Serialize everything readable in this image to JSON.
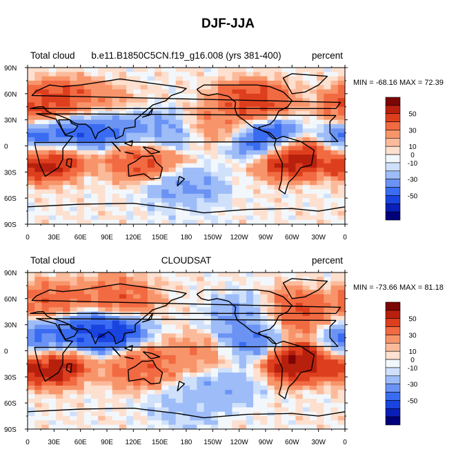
{
  "title": "DJF-JJA",
  "legend_colors": [
    "#00007a",
    "#0a1fb8",
    "#1a44e0",
    "#3a6cf2",
    "#6b93f4",
    "#9dbcf8",
    "#cfe0fb",
    "#f2f7fc",
    "#fde0cf",
    "#fbbb9b",
    "#f8946a",
    "#f26a42",
    "#dd3f1e",
    "#b8200e",
    "#7c0505"
  ],
  "panels": [
    {
      "left_label": "Total cloud",
      "center_label": "b.e11.B1850C5CN.f19_g16.008 (yrs 381-400)",
      "right_label": "percent",
      "min_max": "MIN = -68.16 MAX =  72.39"
    },
    {
      "left_label": "Total cloud",
      "center_label": "CLOUDSAT",
      "right_label": "percent",
      "min_max": "MIN = -73.66 MAX =  81.18"
    }
  ],
  "axes": {
    "lat_labels": [
      "90N",
      "60N",
      "30N",
      "0",
      "30S",
      "60S",
      "90S"
    ],
    "lon_labels": [
      "0",
      "30E",
      "60E",
      "90E",
      "120E",
      "150E",
      "180",
      "150W",
      "120W",
      "90W",
      "60W",
      "30W",
      "0"
    ]
  },
  "colorbar": {
    "labels": [
      "50",
      "30",
      "10",
      "0",
      "-10",
      "-30",
      "-50"
    ]
  },
  "chart_data": [
    {
      "type": "heatmap",
      "title": "b.e11.B1850C5CN.f19_g16.008 (yrs 381-400)",
      "variable": "Total cloud",
      "units": "percent",
      "min": -68.16,
      "max": 72.39,
      "xlim": [
        0,
        360
      ],
      "ylim": [
        -90,
        90
      ],
      "contour_levels": [
        -60,
        -50,
        -40,
        -30,
        -20,
        -10,
        -5,
        0,
        5,
        10,
        20,
        30,
        40,
        50,
        60
      ],
      "regions": [
        {
          "lon": 15,
          "lat": 45,
          "value": 35
        },
        {
          "lon": 45,
          "lat": 50,
          "value": 40
        },
        {
          "lon": 80,
          "lat": 45,
          "value": 20
        },
        {
          "lon": 60,
          "lat": 22,
          "value": -45
        },
        {
          "lon": 90,
          "lat": 22,
          "value": -40
        },
        {
          "lon": 20,
          "lat": -15,
          "value": 55
        },
        {
          "lon": 300,
          "lat": -12,
          "value": 55
        },
        {
          "lon": 130,
          "lat": -15,
          "value": 35
        },
        {
          "lon": 15,
          "lat": 7,
          "value": -45
        },
        {
          "lon": 270,
          "lat": 8,
          "value": -50
        },
        {
          "lon": 220,
          "lat": 25,
          "value": 20
        },
        {
          "lon": 255,
          "lat": 50,
          "value": 40
        },
        {
          "lon": 150,
          "lat": 15,
          "value": -25
        },
        {
          "lon": 180,
          "lat": -50,
          "value": -25
        },
        {
          "lon": 180,
          "lat": -80,
          "value": -5
        }
      ]
    },
    {
      "type": "heatmap",
      "title": "CLOUDSAT",
      "variable": "Total cloud",
      "units": "percent",
      "min": -73.66,
      "max": 81.18,
      "xlim": [
        0,
        360
      ],
      "ylim": [
        -90,
        90
      ],
      "contour_levels": [
        -60,
        -50,
        -40,
        -30,
        -20,
        -10,
        -5,
        0,
        5,
        10,
        20,
        30,
        40,
        50,
        60
      ],
      "regions": [
        {
          "lon": 30,
          "lat": 55,
          "value": 30
        },
        {
          "lon": 100,
          "lat": 60,
          "value": 30
        },
        {
          "lon": 90,
          "lat": 22,
          "value": -55
        },
        {
          "lon": 60,
          "lat": 25,
          "value": -40
        },
        {
          "lon": 25,
          "lat": -15,
          "value": 55
        },
        {
          "lon": 305,
          "lat": -12,
          "value": 55
        },
        {
          "lon": 130,
          "lat": -18,
          "value": 30
        },
        {
          "lon": 15,
          "lat": 10,
          "value": -40
        },
        {
          "lon": 250,
          "lat": 10,
          "value": -35
        },
        {
          "lon": 300,
          "lat": 45,
          "value": 35
        },
        {
          "lon": 200,
          "lat": -5,
          "value": 20
        },
        {
          "lon": 220,
          "lat": -40,
          "value": -20
        },
        {
          "lon": 250,
          "lat": 40,
          "value": -25
        },
        {
          "lon": 180,
          "lat": -65,
          "value": -15
        }
      ]
    }
  ]
}
